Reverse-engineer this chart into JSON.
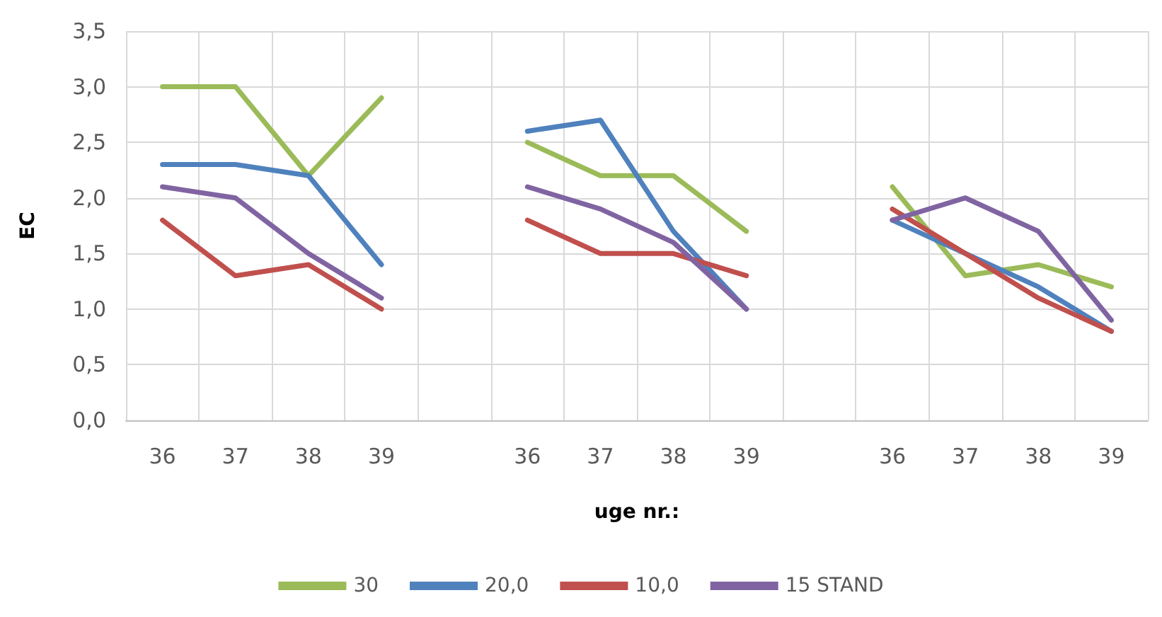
{
  "chart_data": {
    "type": "line",
    "xlabel": "uge nr.:",
    "ylabel": "EC",
    "categories": [
      "36",
      "37",
      "38",
      "39",
      null,
      "36",
      "37",
      "38",
      "39",
      null,
      "36",
      "37",
      "38",
      "39"
    ],
    "series": [
      {
        "name": "30",
        "color": "#9bbb59",
        "values": [
          3.0,
          3.0,
          2.2,
          2.9,
          null,
          2.5,
          2.2,
          2.2,
          1.7,
          null,
          2.1,
          1.3,
          1.4,
          1.2
        ]
      },
      {
        "name": "20,0",
        "color": "#4f81bd",
        "values": [
          2.3,
          2.3,
          2.2,
          1.4,
          null,
          2.6,
          2.7,
          1.7,
          1.0,
          null,
          1.8,
          1.5,
          1.2,
          0.8
        ]
      },
      {
        "name": "10,0",
        "color": "#c0504d",
        "values": [
          1.8,
          1.3,
          1.4,
          1.0,
          null,
          1.8,
          1.5,
          1.5,
          1.3,
          null,
          1.9,
          1.5,
          1.1,
          0.8
        ]
      },
      {
        "name": "15 STAND",
        "color": "#8064a2",
        "values": [
          2.1,
          2.0,
          1.5,
          1.1,
          null,
          2.1,
          1.9,
          1.6,
          1.0,
          null,
          1.8,
          2.0,
          1.7,
          0.9
        ]
      }
    ],
    "ylim": [
      0,
      3.5
    ],
    "yticks": [
      {
        "value": 0,
        "label": "0,0"
      },
      {
        "value": 0.5,
        "label": "0,5"
      },
      {
        "value": 1,
        "label": "1,0"
      },
      {
        "value": 1.5,
        "label": "1,5"
      },
      {
        "value": 2,
        "label": "2,0"
      },
      {
        "value": 2.5,
        "label": "2,5"
      },
      {
        "value": 3,
        "label": "3,0"
      },
      {
        "value": 3.5,
        "label": "3,5"
      }
    ],
    "grid": true,
    "legend": "bottom",
    "marker": "none",
    "line_style": "solid"
  }
}
